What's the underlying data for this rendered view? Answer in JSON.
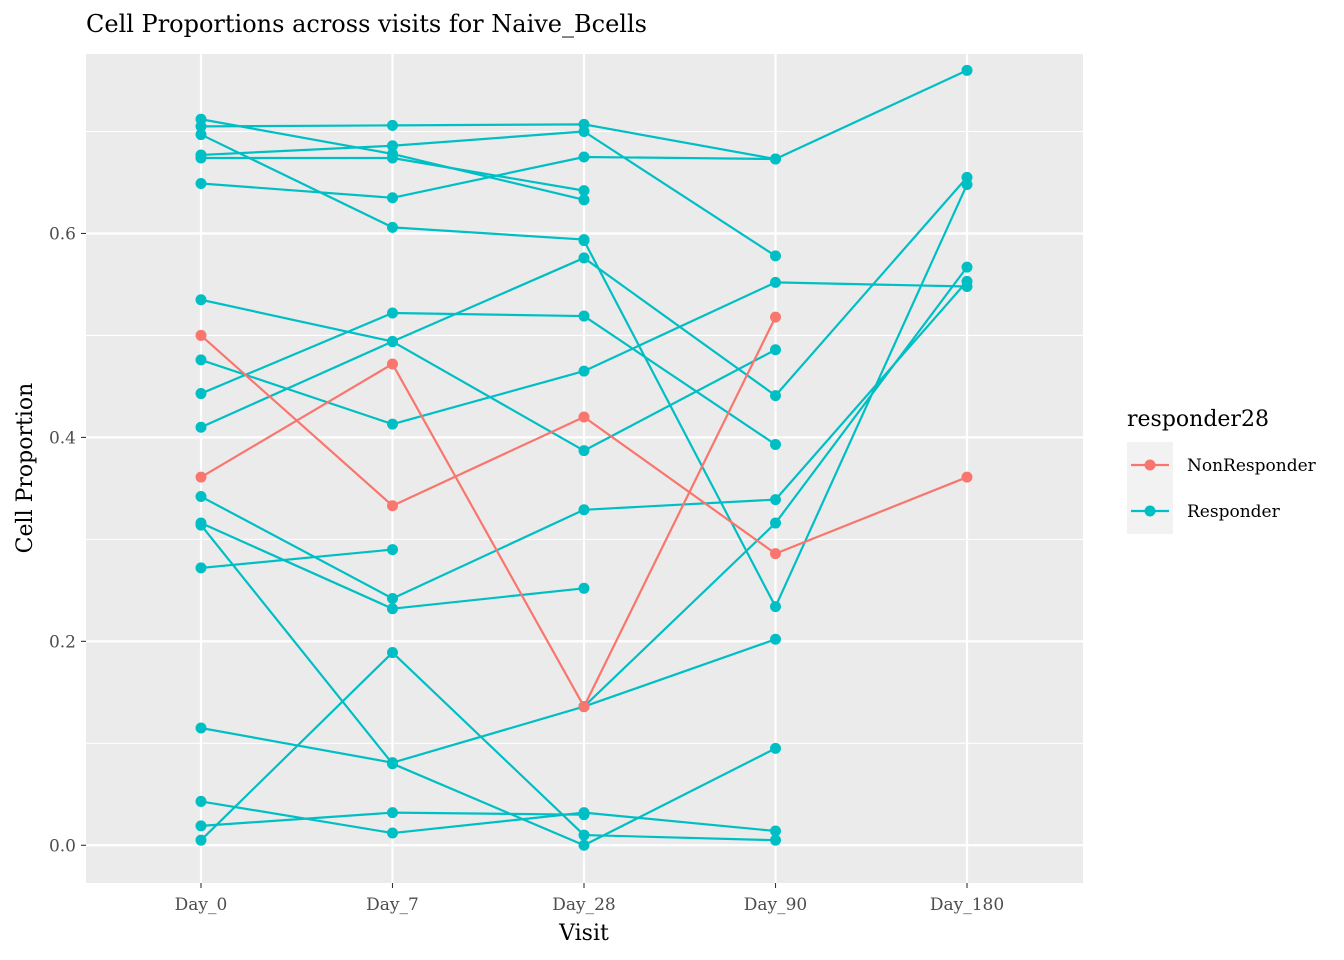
{
  "title": "Cell Proportions across visits for Naive_Bcells",
  "chart_data": {
    "type": "line",
    "title": "Cell Proportions across visits for Naive_Bcells",
    "xlabel": "Visit",
    "ylabel": "Cell Proportion",
    "categories": [
      "Day_0",
      "Day_7",
      "Day_28",
      "Day_90",
      "Day_180"
    ],
    "ylim": [
      -0.037,
      0.776
    ],
    "yticks": [
      0.0,
      0.2,
      0.4,
      0.6
    ],
    "ytick_labels": [
      "0.0",
      "0.2",
      "0.4",
      "0.6"
    ],
    "grid": true,
    "legend": {
      "title": "responder28",
      "position": "right",
      "entries": [
        {
          "name": "NonResponder",
          "color": "#F8766D"
        },
        {
          "name": "Responder",
          "color": "#00BFC4"
        }
      ]
    },
    "colors": {
      "NonResponder": "#F8766D",
      "Responder": "#00BFC4",
      "panel": "#EBEBEB",
      "grid": "#FFFFFF"
    },
    "series": [
      {
        "group": "Responder",
        "values": [
          0.712,
          0.678,
          0.633,
          null,
          null
        ]
      },
      {
        "group": "Responder",
        "values": [
          0.705,
          0.706,
          0.707,
          0.673,
          0.76
        ]
      },
      {
        "group": "Responder",
        "values": [
          0.697,
          0.606,
          0.594,
          null,
          null
        ]
      },
      {
        "group": "Responder",
        "values": [
          0.677,
          0.686,
          0.7,
          0.578,
          null
        ]
      },
      {
        "group": "Responder",
        "values": [
          0.674,
          0.674,
          0.642,
          null,
          null
        ]
      },
      {
        "group": "Responder",
        "values": [
          0.649,
          0.635,
          0.675,
          0.673,
          null
        ]
      },
      {
        "group": "Responder",
        "values": [
          0.535,
          0.494,
          0.387,
          0.486,
          null
        ]
      },
      {
        "group": "Responder",
        "values": [
          0.476,
          0.413,
          0.465,
          0.552,
          0.548
        ]
      },
      {
        "group": "Responder",
        "values": [
          0.443,
          0.522,
          0.519,
          0.393,
          null
        ]
      },
      {
        "group": "Responder",
        "values": [
          0.41,
          0.494,
          0.576,
          0.441,
          0.655
        ]
      },
      {
        "group": "Responder",
        "values": [
          0.342,
          0.242,
          0.329,
          0.339,
          0.553
        ]
      },
      {
        "group": "Responder",
        "values": [
          0.316,
          0.232,
          0.252,
          null,
          null
        ]
      },
      {
        "group": "Responder",
        "values": [
          0.272,
          0.29,
          null,
          null,
          null
        ]
      },
      {
        "group": "Responder",
        "values": [
          0.314,
          0.08,
          0.0,
          0.095,
          null
        ]
      },
      {
        "group": "Responder",
        "values": [
          0.115,
          0.081,
          0.136,
          0.316,
          0.567
        ]
      },
      {
        "group": "Responder",
        "values": [
          0.043,
          0.012,
          0.032,
          0.014,
          null
        ]
      },
      {
        "group": "Responder",
        "values": [
          0.019,
          0.032,
          0.03,
          null,
          null
        ]
      },
      {
        "group": "Responder",
        "values": [
          0.005,
          0.189,
          0.01,
          0.005,
          null
        ]
      },
      {
        "group": "Responder",
        "values": [
          null,
          null,
          0.593,
          0.234,
          0.648
        ]
      },
      {
        "group": "Responder",
        "values": [
          null,
          null,
          0.136,
          0.202,
          null
        ]
      },
      {
        "group": "NonResponder",
        "values": [
          0.5,
          0.333,
          0.42,
          0.286,
          0.361
        ]
      },
      {
        "group": "NonResponder",
        "values": [
          0.361,
          0.472,
          0.136,
          0.518,
          null
        ]
      }
    ]
  }
}
